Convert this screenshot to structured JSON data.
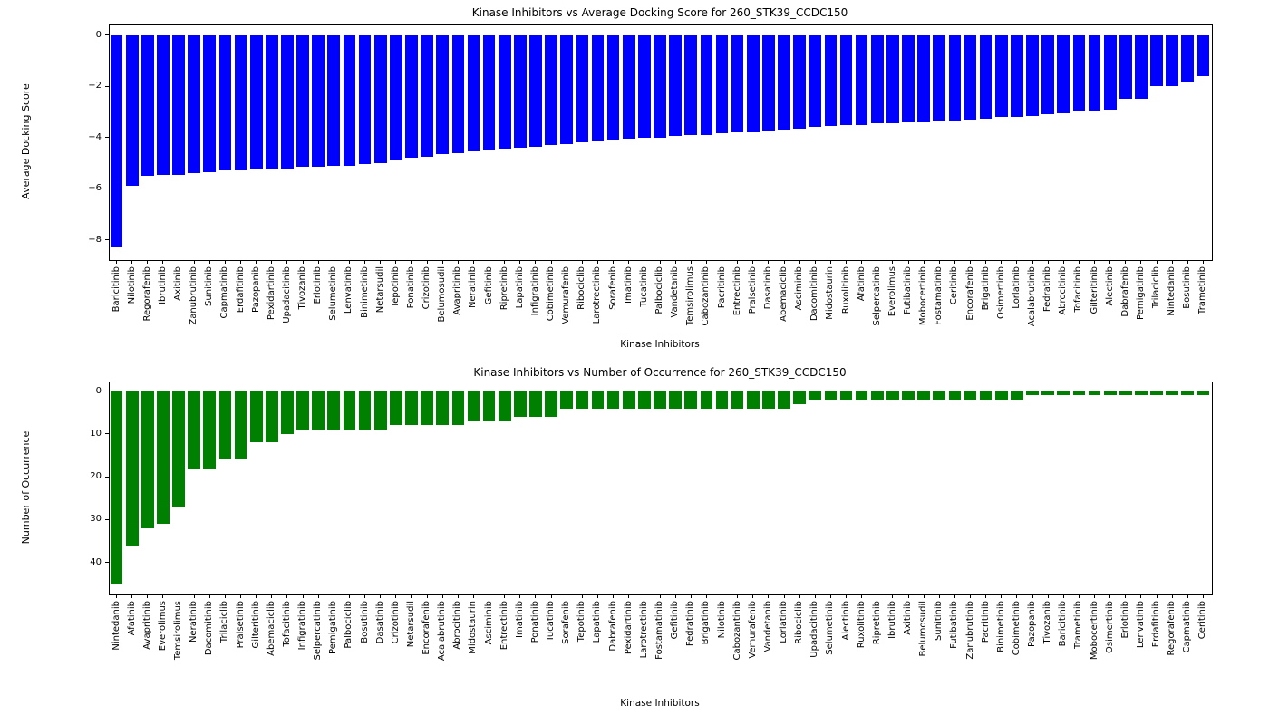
{
  "page": {
    "background": "#ffffff"
  },
  "chart_data": [
    {
      "type": "bar",
      "title": "Kinase Inhibitors vs Average Docking Score for 260_STK39_CCDC150",
      "xlabel": "Kinase Inhibitors",
      "ylabel": "Average Docking Score",
      "bar_color": "#0000ff",
      "grid": false,
      "legend": "none",
      "yticks": [
        0,
        -2,
        -4,
        -6,
        -8
      ],
      "ylim_top": 0.42,
      "ylim_bottom": -8.76,
      "categories": [
        "Baricitinib",
        "Nilotinib",
        "Regorafenib",
        "Ibrutinib",
        "Axitinib",
        "Zanubrutinib",
        "Sunitinib",
        "Capmatinib",
        "Erdafitinib",
        "Pazopanib",
        "Pexidartinib",
        "Upadacitinib",
        "Tivozanib",
        "Erlotinib",
        "Selumetinib",
        "Lenvatinib",
        "Binimetinib",
        "Netarsudil",
        "Tepotinib",
        "Ponatinib",
        "Crizotinib",
        "Belumosudil",
        "Avapritinib",
        "Neratinib",
        "Gefitinib",
        "Ripretinib",
        "Lapatinib",
        "Infigratinib",
        "Cobimetinib",
        "Vemurafenib",
        "Ribociclib",
        "Larotrectinib",
        "Sorafenib",
        "Imatinib",
        "Tucatinib",
        "Palbociclib",
        "Vandetanib",
        "Temsirolimus",
        "Cabozantinib",
        "Pacritinib",
        "Entrectinib",
        "Pralsetinib",
        "Dasatinib",
        "Abemaciclib",
        "Asciminib",
        "Dacomitinib",
        "Midostaurin",
        "Ruxolitinib",
        "Afatinib",
        "Selpercatinib",
        "Everolimus",
        "Futibatinib",
        "Mobocertinib",
        "Fostamatinib",
        "Ceritinib",
        "Encorafenib",
        "Brigatinib",
        "Osimertinib",
        "Lorlatinib",
        "Acalabrutinib",
        "Fedratinib",
        "Abrocitinib",
        "Tofacitinib",
        "Gilteritinib",
        "Alectinib",
        "Dabrafenib",
        "Pemigatinib",
        "Trilaciclib",
        "Nintedanib",
        "Bosutinib",
        "Trametinib"
      ],
      "values": [
        -8.3,
        -5.9,
        -5.5,
        -5.45,
        -5.45,
        -5.4,
        -5.35,
        -5.3,
        -5.3,
        -5.25,
        -5.2,
        -5.2,
        -5.15,
        -5.15,
        -5.1,
        -5.1,
        -5.05,
        -5.0,
        -4.85,
        -4.8,
        -4.75,
        -4.65,
        -4.6,
        -4.55,
        -4.5,
        -4.45,
        -4.4,
        -4.35,
        -4.3,
        -4.25,
        -4.2,
        -4.15,
        -4.1,
        -4.05,
        -4.0,
        -4.0,
        -3.95,
        -3.9,
        -3.9,
        -3.85,
        -3.8,
        -3.8,
        -3.75,
        -3.7,
        -3.65,
        -3.6,
        -3.55,
        -3.5,
        -3.5,
        -3.45,
        -3.45,
        -3.4,
        -3.4,
        -3.35,
        -3.35,
        -3.3,
        -3.25,
        -3.2,
        -3.2,
        -3.15,
        -3.1,
        -3.05,
        -3.0,
        -3.0,
        -2.9,
        -2.5,
        -2.5,
        -2.0,
        -2.0,
        -1.8,
        -1.6
      ]
    },
    {
      "type": "bar",
      "title": "Kinase Inhibitors vs Number of Occurrence for 260_STK39_CCDC150",
      "xlabel": "Kinase Inhibitors",
      "ylabel": "Number of Occurrence",
      "bar_color": "#008000",
      "grid": false,
      "legend": "none",
      "axis_inverted": true,
      "yticks": [
        0,
        10,
        20,
        30,
        40
      ],
      "ylim_top": -2.25,
      "ylim_bottom": 47.25,
      "categories": [
        "Nintedanib",
        "Afatinib",
        "Avapritinib",
        "Everolimus",
        "Temsirolimus",
        "Neratinib",
        "Dacomitinib",
        "Trilaciclib",
        "Pralsetinib",
        "Gilteritinib",
        "Abemaciclib",
        "Tofacitinib",
        "Infigratinib",
        "Selpercatinib",
        "Pemigatinib",
        "Palbociclib",
        "Bosutinib",
        "Dasatinib",
        "Crizotinib",
        "Netarsudil",
        "Encorafenib",
        "Acalabrutinib",
        "Abrocitinib",
        "Midostaurin",
        "Asciminib",
        "Entrectinib",
        "Imatinib",
        "Ponatinib",
        "Tucatinib",
        "Sorafenib",
        "Tepotinib",
        "Lapatinib",
        "Dabrafenib",
        "Pexidartinib",
        "Larotrectinib",
        "Fostamatinib",
        "Gefitinib",
        "Fedratinib",
        "Brigatinib",
        "Nilotinib",
        "Cabozantinib",
        "Vemurafenib",
        "Vandetanib",
        "Lorlatinib",
        "Ribociclib",
        "Upadacitinib",
        "Selumetinib",
        "Alectinib",
        "Ruxolitinib",
        "Ripretinib",
        "Ibrutinib",
        "Axitinib",
        "Belumosudil",
        "Sunitinib",
        "Futibatinib",
        "Zanubrutinib",
        "Pacritinib",
        "Binimetinib",
        "Cobimetinib",
        "Pazopanib",
        "Tivozanib",
        "Baricitinib",
        "Trametinib",
        "Mobocertinib",
        "Osimertinib",
        "Erlotinib",
        "Lenvatinib",
        "Erdafitinib",
        "Regorafenib",
        "Capmatinib",
        "Ceritinib"
      ],
      "values": [
        45,
        36,
        32,
        31,
        27,
        18,
        18,
        16,
        16,
        12,
        12,
        10,
        9,
        9,
        9,
        9,
        9,
        9,
        8,
        8,
        8,
        8,
        8,
        7,
        7,
        7,
        6,
        6,
        6,
        4,
        4,
        4,
        4,
        4,
        4,
        4,
        4,
        4,
        4,
        4,
        4,
        4,
        4,
        4,
        3,
        2,
        2,
        2,
        2,
        2,
        2,
        2,
        2,
        2,
        2,
        2,
        2,
        2,
        2,
        1,
        1,
        1,
        1,
        1,
        1,
        1,
        1,
        1,
        1,
        1,
        1
      ]
    }
  ]
}
